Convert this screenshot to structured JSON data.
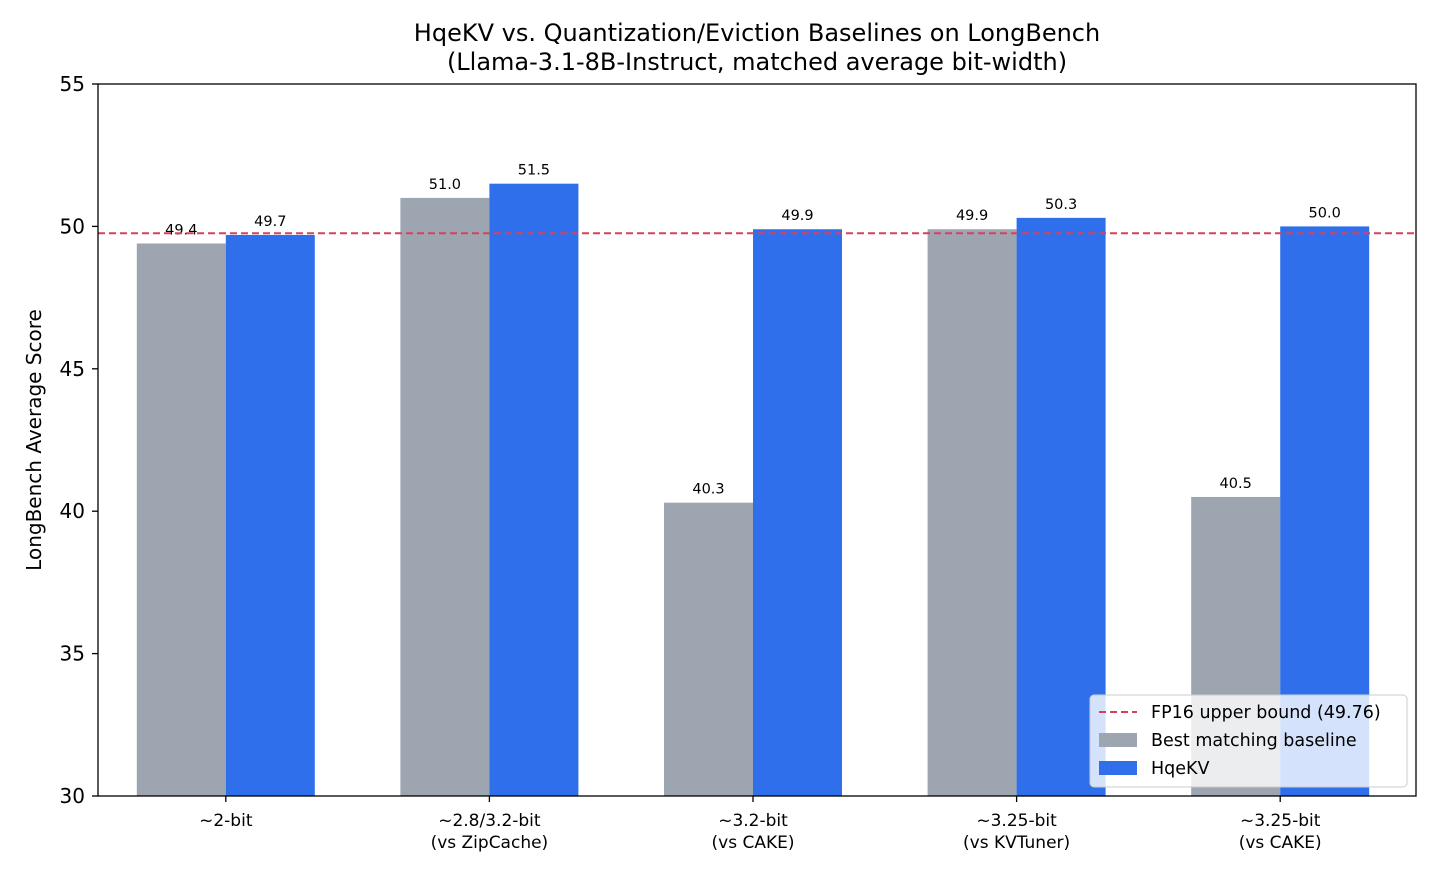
{
  "chart_data": {
    "type": "bar",
    "title": [
      "HqeKV vs. Quantization/Eviction Baselines on LongBench",
      "(Llama-3.1-8B-Instruct, matched average bit-width)"
    ],
    "xlabel": "",
    "ylabel": "LongBench Average Score",
    "ylim": [
      30,
      55
    ],
    "yticks": [
      30,
      35,
      40,
      45,
      50,
      55
    ],
    "grid": false,
    "legend_position": "lower-right",
    "categories": [
      [
        "~2-bit"
      ],
      [
        "~2.8/3.2-bit",
        "(vs ZipCache)"
      ],
      [
        "~3.2-bit",
        "(vs CAKE)"
      ],
      [
        "~3.25-bit",
        "(vs KVTuner)"
      ],
      [
        "~3.25-bit",
        "(vs CAKE)"
      ]
    ],
    "series": [
      {
        "name": "Best matching baseline",
        "color": "#9ca5b0",
        "values": [
          49.4,
          51.0,
          40.3,
          49.9,
          40.5
        ],
        "labels": [
          "49.4",
          "51.0",
          "40.3",
          "49.9",
          "40.5"
        ]
      },
      {
        "name": "HqeKV",
        "color": "#2f6feb",
        "values": [
          49.7,
          51.5,
          49.9,
          50.3,
          50.0
        ],
        "labels": [
          "49.7",
          "51.5",
          "49.9",
          "50.3",
          "50.0"
        ]
      }
    ],
    "reference_line": {
      "name": "FP16 upper bound (49.76)",
      "value": 49.76,
      "color": "#d9415b",
      "style": "dashed"
    }
  }
}
